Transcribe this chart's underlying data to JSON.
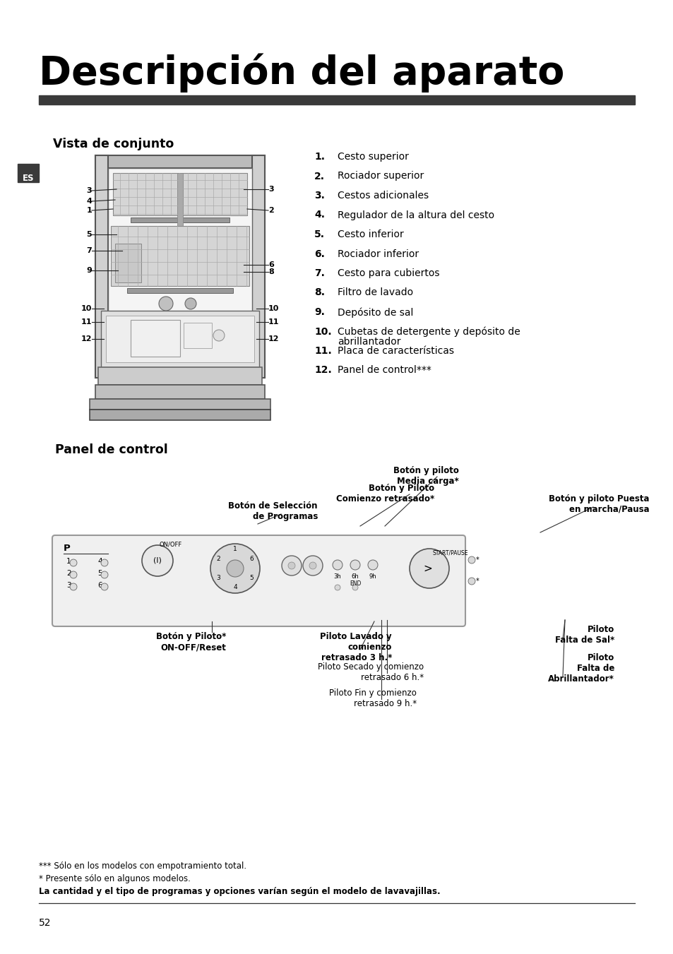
{
  "title": "Descripción del aparato",
  "section1": "Vista de conjunto",
  "section2": "Panel de control",
  "items": [
    [
      "1.",
      "Cesto superior"
    ],
    [
      "2.",
      "Rociador superior"
    ],
    [
      "3.",
      "Cestos adicionales"
    ],
    [
      "4.",
      "Regulador de la altura del cesto"
    ],
    [
      "5.",
      "Cesto inferior"
    ],
    [
      "6.",
      "Rociador inferior"
    ],
    [
      "7.",
      "Cesto para cubiertos"
    ],
    [
      "8.",
      "Filtro de lavado"
    ],
    [
      "9.",
      "Depósito de sal"
    ],
    [
      "10.",
      "Cubetas de detergente y depósito de\nabrillantador"
    ],
    [
      "11.",
      "Placa de características"
    ],
    [
      "12.",
      "Panel de control***"
    ]
  ],
  "footnotes": [
    "*** Sólo en los modelos con empotramiento total.",
    "* Presente sólo en algunos modelos.",
    "La cantidad y el tipo de programas y opciones varían según el modelo de lavavajillas."
  ],
  "page_number": "52",
  "es_label": "ES",
  "bg_color": "#ffffff",
  "dark_bar_color": "#3a3a3a",
  "text_color": "#000000",
  "panel_labels": {
    "media_carga": "Botón y piloto\nMedia carga*",
    "comienzo_retrasado": "Botón y Piloto\nComienzo retrasado*",
    "seleccion": "Botón de Selección\nde Programas",
    "onoff": "Botón y Piloto*\nON-OFF/Reset",
    "lavado_3h": "Piloto Lavado y\ncomienzo\nretrasado 3 h.*",
    "secado_6h": "Piloto Secado y comienzo\nretrasado 6 h.*",
    "fin_9h": "Piloto Fin y comienzo\nretrasado 9 h.*",
    "puesta_marcha": "Botón y piloto Puesta\nen marcha/Pausa",
    "falta_sal": "Piloto\nFalta de Sal*",
    "falta_abrillantador": "Piloto\nFalta de\nAbrillantador*"
  }
}
